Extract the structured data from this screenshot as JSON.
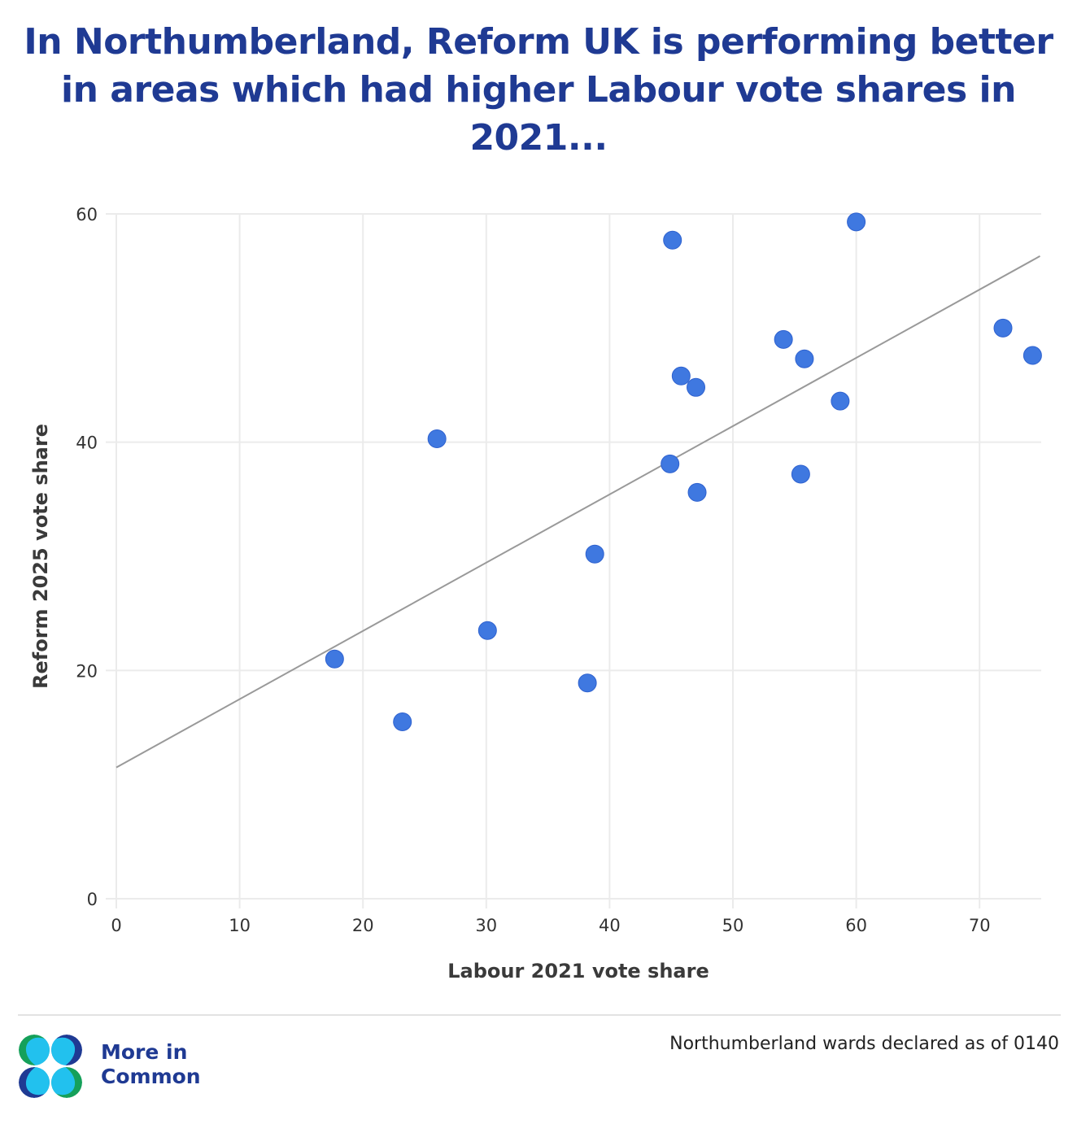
{
  "title": "In Northumberland, Reform UK is performing better in areas which had higher Labour vote shares in 2021...",
  "colors": {
    "title": "#1f3a93",
    "point": "#3f78e0",
    "point_stroke": "#2f62cf",
    "trendline": "#999999",
    "grid": "#ebebeb",
    "logo_navy": "#1f3a93",
    "logo_green": "#15a05a",
    "logo_cyan": "#22c1ee"
  },
  "chart_data": {
    "type": "scatter",
    "title": "In Northumberland, Reform UK is performing better in areas which had higher Labour vote shares in 2021...",
    "xlabel": "Labour 2021 vote share",
    "ylabel": "Reform 2025 vote share",
    "xlim": [
      0,
      75
    ],
    "ylim": [
      0,
      60
    ],
    "xticks": [
      0,
      10,
      20,
      30,
      40,
      50,
      60,
      70
    ],
    "yticks": [
      0,
      20,
      40,
      60
    ],
    "grid": true,
    "legend": "none",
    "series": [
      {
        "name": "Northumberland wards",
        "points": [
          {
            "x": 17.7,
            "y": 21.0
          },
          {
            "x": 23.2,
            "y": 15.5
          },
          {
            "x": 26.0,
            "y": 40.3
          },
          {
            "x": 30.1,
            "y": 23.5
          },
          {
            "x": 38.2,
            "y": 18.9
          },
          {
            "x": 38.8,
            "y": 30.2
          },
          {
            "x": 44.9,
            "y": 38.1
          },
          {
            "x": 45.1,
            "y": 57.7
          },
          {
            "x": 45.8,
            "y": 45.8
          },
          {
            "x": 47.0,
            "y": 44.8
          },
          {
            "x": 47.1,
            "y": 35.6
          },
          {
            "x": 54.1,
            "y": 49.0
          },
          {
            "x": 55.5,
            "y": 37.2
          },
          {
            "x": 55.8,
            "y": 47.3
          },
          {
            "x": 58.7,
            "y": 43.6
          },
          {
            "x": 60.0,
            "y": 59.3
          },
          {
            "x": 71.9,
            "y": 50.0
          },
          {
            "x": 74.3,
            "y": 47.6
          }
        ]
      }
    ],
    "trendline": {
      "x": [
        0,
        74.9
      ],
      "y": [
        11.5,
        56.3
      ]
    }
  },
  "footer": {
    "brand_line1": "More in",
    "brand_line2": "Common",
    "note": "Northumberland wards declared as of 0140"
  }
}
